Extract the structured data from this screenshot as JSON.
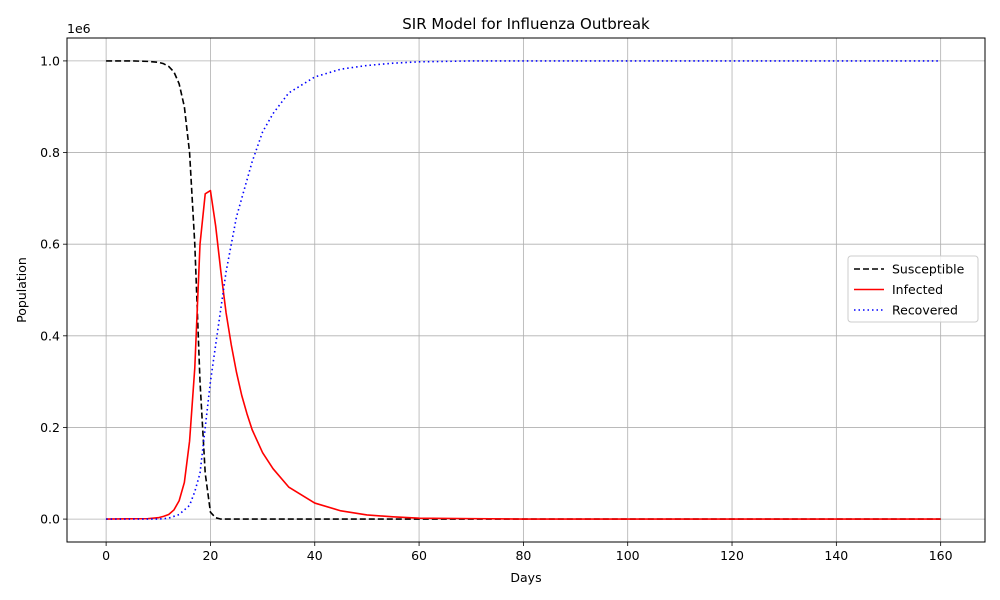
{
  "chart_data": {
    "type": "line",
    "title": "SIR Model for Influenza Outbreak",
    "xlabel": "Days",
    "ylabel": "Population",
    "y_offset_label": "1e6",
    "xlim": [
      -7.5,
      168.5
    ],
    "ylim": [
      -0.05,
      1.05
    ],
    "x_ticks": [
      0,
      20,
      40,
      60,
      80,
      100,
      120,
      140,
      160
    ],
    "x_tick_labels": [
      "0",
      "20",
      "40",
      "60",
      "80",
      "100",
      "120",
      "140",
      "160"
    ],
    "y_ticks": [
      0.0,
      0.2,
      0.4,
      0.6,
      0.8,
      1.0
    ],
    "y_tick_labels": [
      "0.0",
      "0.2",
      "0.4",
      "0.6",
      "0.8",
      "1.0"
    ],
    "grid": true,
    "legend_position": "center-right",
    "series": [
      {
        "name": "Susceptible",
        "color": "#000000",
        "style": "dashed",
        "points": [
          [
            0,
            1.0
          ],
          [
            5,
            1.0
          ],
          [
            8,
            0.999
          ],
          [
            10,
            0.997
          ],
          [
            11,
            0.994
          ],
          [
            12,
            0.988
          ],
          [
            13,
            0.976
          ],
          [
            14,
            0.95
          ],
          [
            15,
            0.9
          ],
          [
            16,
            0.8
          ],
          [
            17,
            0.6
          ],
          [
            18,
            0.3
          ],
          [
            19,
            0.1
          ],
          [
            20,
            0.015
          ],
          [
            21,
            0.003
          ],
          [
            22,
            0.0
          ],
          [
            160,
            0.0
          ]
        ]
      },
      {
        "name": "Infected",
        "color": "#ff0000",
        "style": "solid",
        "points": [
          [
            0,
            0.0
          ],
          [
            8,
            0.001
          ],
          [
            10,
            0.003
          ],
          [
            11,
            0.006
          ],
          [
            12,
            0.01
          ],
          [
            13,
            0.02
          ],
          [
            14,
            0.04
          ],
          [
            15,
            0.08
          ],
          [
            16,
            0.17
          ],
          [
            17,
            0.33
          ],
          [
            18,
            0.6
          ],
          [
            19,
            0.71
          ],
          [
            20,
            0.717
          ],
          [
            21,
            0.64
          ],
          [
            22,
            0.54
          ],
          [
            23,
            0.45
          ],
          [
            24,
            0.38
          ],
          [
            25,
            0.32
          ],
          [
            26,
            0.27
          ],
          [
            27,
            0.23
          ],
          [
            28,
            0.195
          ],
          [
            30,
            0.145
          ],
          [
            32,
            0.11
          ],
          [
            35,
            0.07
          ],
          [
            40,
            0.035
          ],
          [
            45,
            0.018
          ],
          [
            50,
            0.009
          ],
          [
            55,
            0.005
          ],
          [
            60,
            0.002
          ],
          [
            70,
            0.001
          ],
          [
            80,
            0.0
          ],
          [
            160,
            0.0
          ]
        ]
      },
      {
        "name": "Recovered",
        "color": "#0000ff",
        "style": "dotted",
        "points": [
          [
            0,
            0.0
          ],
          [
            10,
            0.0
          ],
          [
            12,
            0.002
          ],
          [
            14,
            0.01
          ],
          [
            15,
            0.02
          ],
          [
            16,
            0.03
          ],
          [
            17,
            0.06
          ],
          [
            18,
            0.1
          ],
          [
            19,
            0.2
          ],
          [
            20,
            0.3
          ],
          [
            21,
            0.38
          ],
          [
            22,
            0.46
          ],
          [
            23,
            0.54
          ],
          [
            24,
            0.6
          ],
          [
            25,
            0.66
          ],
          [
            26,
            0.7
          ],
          [
            28,
            0.78
          ],
          [
            30,
            0.845
          ],
          [
            32,
            0.885
          ],
          [
            35,
            0.93
          ],
          [
            40,
            0.965
          ],
          [
            45,
            0.982
          ],
          [
            50,
            0.99
          ],
          [
            55,
            0.995
          ],
          [
            60,
            0.998
          ],
          [
            70,
            1.0
          ],
          [
            160,
            1.0
          ]
        ]
      }
    ]
  }
}
